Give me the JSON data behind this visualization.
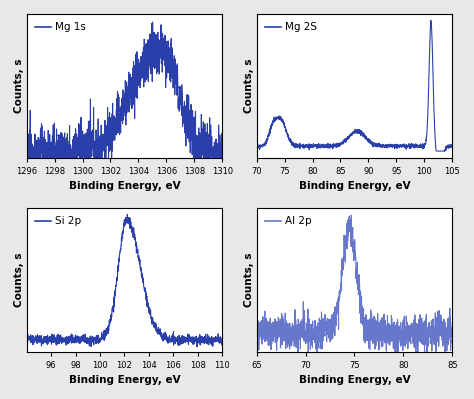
{
  "line_color": "#2b3faa",
  "al2p_line_color": "#6677cc",
  "background_color": "#e8e8e8",
  "axes_bg": "#ffffff",
  "subplots": [
    {
      "label": "Mg 1s",
      "xlabel": "Binding Energy, eV",
      "ylabel": "Counts, s",
      "xmin": 1296,
      "xmax": 1310,
      "xticks": [
        1296,
        1298,
        1300,
        1302,
        1304,
        1306,
        1308,
        1310
      ]
    },
    {
      "label": "Mg 2S",
      "xlabel": "Binding Energy, eV",
      "ylabel": "Counts, s",
      "xmin": 70,
      "xmax": 105,
      "xticks": [
        70,
        75,
        80,
        85,
        90,
        95,
        100,
        105
      ]
    },
    {
      "label": "Si 2p",
      "xlabel": "Binding Energy, eV",
      "ylabel": "Counts, s",
      "xmin": 94,
      "xmax": 110,
      "xticks": [
        96,
        98,
        100,
        102,
        104,
        106,
        108,
        110
      ]
    },
    {
      "label": "Al 2p",
      "xlabel": "Binding Energy, eV",
      "ylabel": "Counts, s",
      "xmin": 65,
      "xmax": 85,
      "xticks": [
        65,
        70,
        75,
        80,
        85
      ]
    }
  ]
}
